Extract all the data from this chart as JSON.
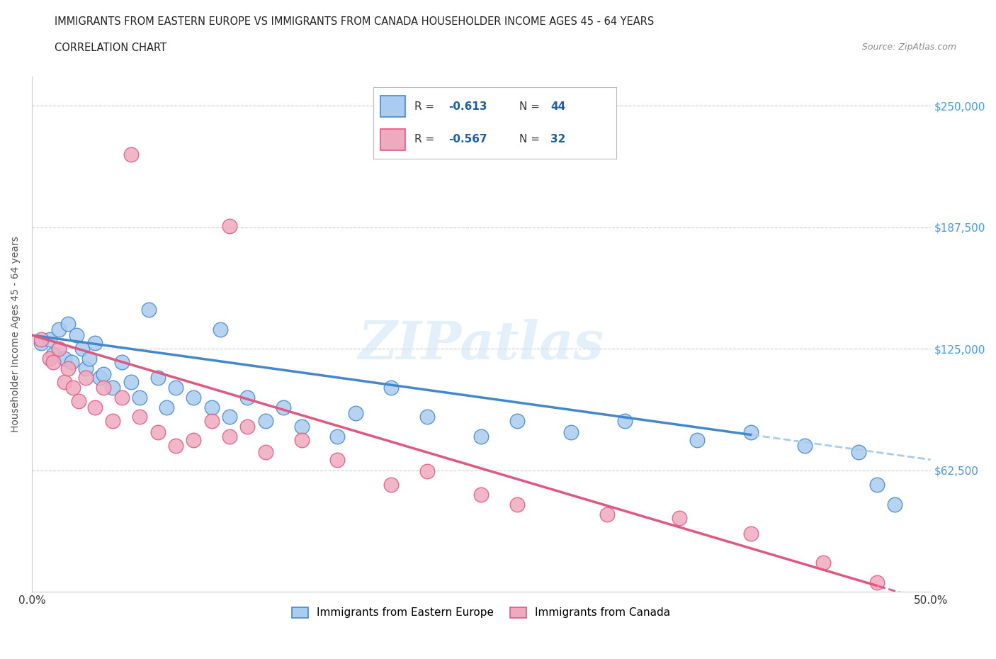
{
  "title_line1": "IMMIGRANTS FROM EASTERN EUROPE VS IMMIGRANTS FROM CANADA HOUSEHOLDER INCOME AGES 45 - 64 YEARS",
  "title_line2": "CORRELATION CHART",
  "source_text": "Source: ZipAtlas.com",
  "watermark": "ZIPatlas",
  "ylabel": "Householder Income Ages 45 - 64 years",
  "xlim": [
    0,
    50
  ],
  "ylim": [
    0,
    265000
  ],
  "hlines": [
    62500,
    125000,
    187500,
    250000
  ],
  "legend_R1": "-0.613",
  "legend_N1": "44",
  "legend_R2": "-0.567",
  "legend_N2": "32",
  "color_blue": "#aaccf0",
  "color_pink": "#f0aac0",
  "line_blue": "#4488cc",
  "line_pink": "#e05880",
  "reg_blue_x0": 0,
  "reg_blue_y0": 132000,
  "reg_blue_x1": 50,
  "reg_blue_y1": 68000,
  "reg_pink_x0": 0,
  "reg_pink_y0": 132000,
  "reg_pink_x1": 50,
  "reg_pink_y1": -5000,
  "blue_solid_end": 40,
  "pink_solid_end": 47,
  "blue_points_x": [
    0.5,
    1.0,
    1.2,
    1.5,
    1.8,
    2.0,
    2.2,
    2.5,
    2.8,
    3.0,
    3.2,
    3.5,
    3.8,
    4.0,
    4.5,
    5.0,
    5.5,
    6.0,
    6.5,
    7.0,
    7.5,
    8.0,
    9.0,
    10.0,
    10.5,
    11.0,
    12.0,
    13.0,
    14.0,
    15.0,
    17.0,
    18.0,
    20.0,
    22.0,
    25.0,
    27.0,
    30.0,
    33.0,
    37.0,
    40.0,
    43.0,
    46.0,
    47.0,
    48.0
  ],
  "blue_points_y": [
    128000,
    130000,
    122000,
    135000,
    120000,
    138000,
    118000,
    132000,
    125000,
    115000,
    120000,
    128000,
    110000,
    112000,
    105000,
    118000,
    108000,
    100000,
    145000,
    110000,
    95000,
    105000,
    100000,
    95000,
    135000,
    90000,
    100000,
    88000,
    95000,
    85000,
    80000,
    92000,
    105000,
    90000,
    80000,
    88000,
    82000,
    88000,
    78000,
    82000,
    75000,
    72000,
    55000,
    45000
  ],
  "pink_points_x": [
    0.5,
    1.0,
    1.2,
    1.5,
    1.8,
    2.0,
    2.3,
    2.6,
    3.0,
    3.5,
    4.0,
    4.5,
    5.0,
    6.0,
    7.0,
    8.0,
    9.0,
    10.0,
    11.0,
    12.0,
    13.0,
    15.0,
    17.0,
    20.0,
    22.0,
    25.0,
    27.0,
    32.0,
    36.0,
    40.0,
    44.0,
    47.0
  ],
  "pink_outlier1_x": 5.5,
  "pink_outlier1_y": 225000,
  "pink_outlier2_x": 11.0,
  "pink_outlier2_y": 188000,
  "pink_points_y": [
    130000,
    120000,
    118000,
    125000,
    108000,
    115000,
    105000,
    98000,
    110000,
    95000,
    105000,
    88000,
    100000,
    90000,
    82000,
    75000,
    78000,
    88000,
    80000,
    85000,
    72000,
    78000,
    68000,
    55000,
    62000,
    50000,
    45000,
    40000,
    38000,
    30000,
    15000,
    5000
  ],
  "background_color": "#ffffff"
}
